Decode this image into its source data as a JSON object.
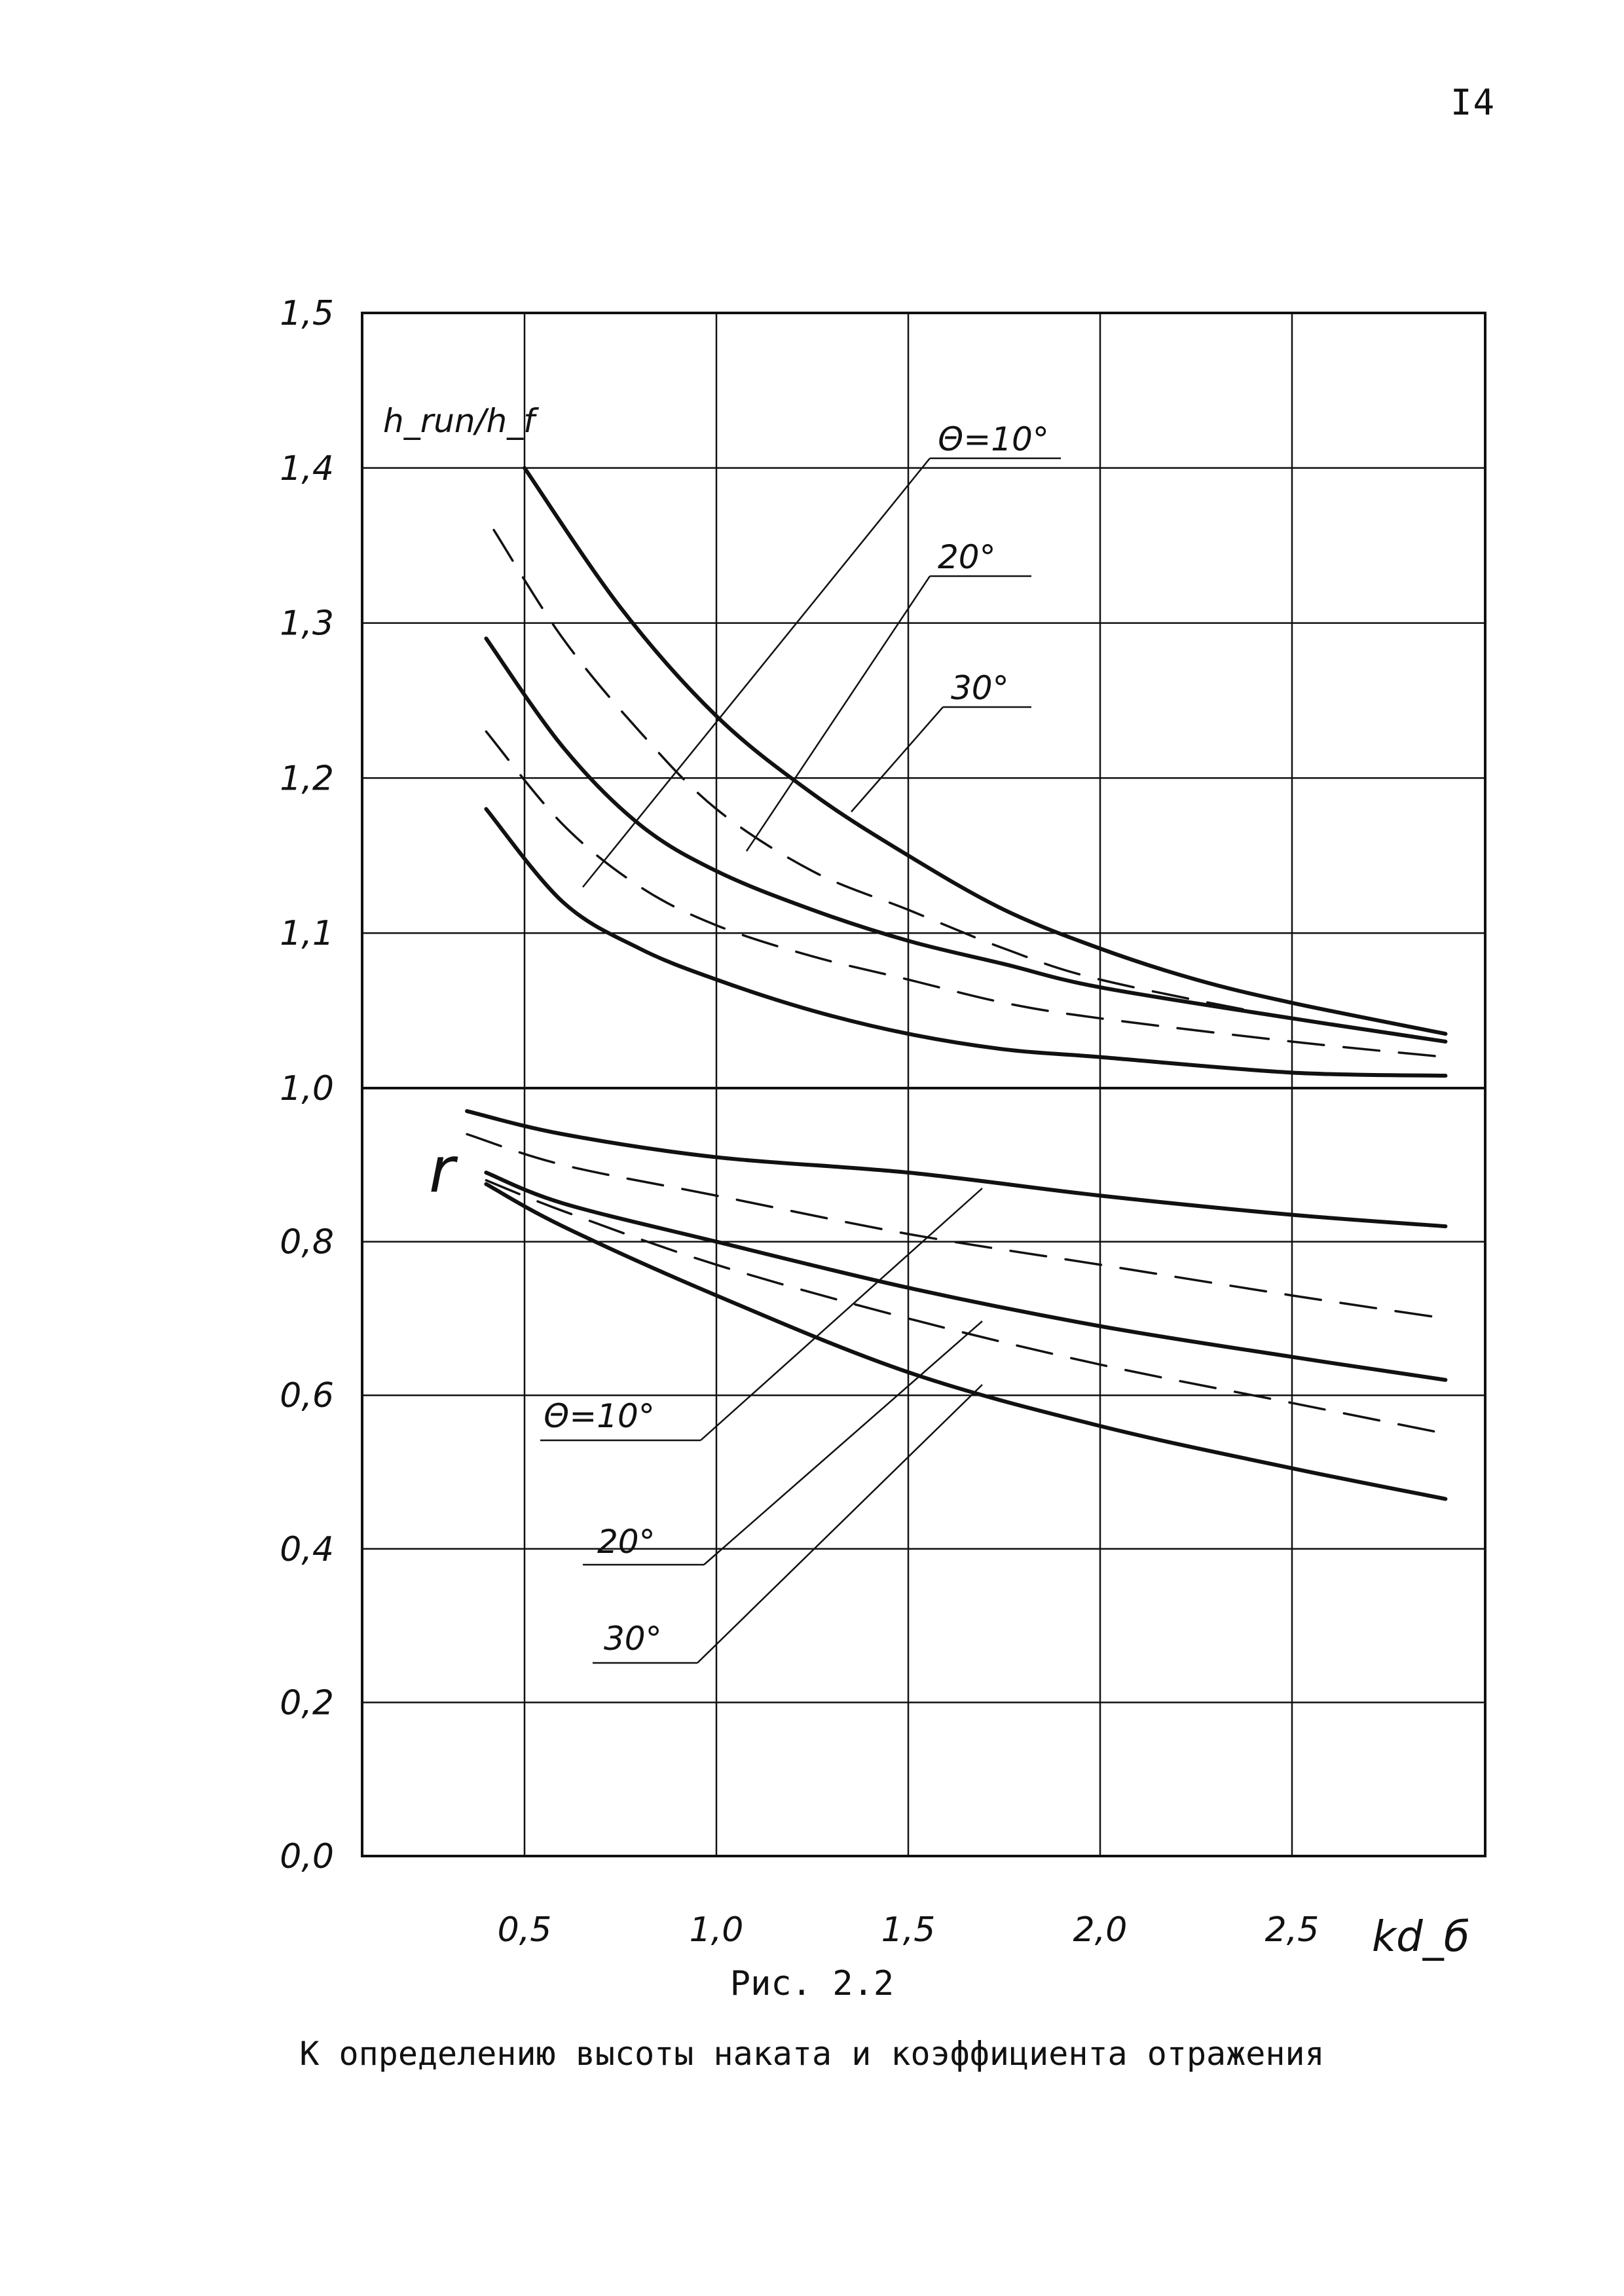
{
  "page_number": "I4",
  "figure_number": "Рис. 2.2",
  "caption": "К определению высоты наката и коэффициента отражения",
  "chart_data": {
    "type": "line",
    "xlabel": "kd_б",
    "ylabel_upper": "h_run/h_f",
    "ylabel_lower": "r",
    "x_ticks": [
      "0,5",
      "1,0",
      "1,5",
      "2,0",
      "2,5"
    ],
    "x_tick_values": [
      0.5,
      1.0,
      1.5,
      2.0,
      2.5
    ],
    "y_ticks": [
      "0,0",
      "0,2",
      "0,4",
      "0,6",
      "0,8",
      "1,0",
      "1,1",
      "1,2",
      "1,3",
      "1,4",
      "1,5"
    ],
    "y_tick_values": [
      0.0,
      0.2,
      0.4,
      0.6,
      0.8,
      1.0,
      1.1,
      1.2,
      1.3,
      1.4,
      1.5
    ],
    "xlim": [
      0.0,
      2.9
    ],
    "grid": true,
    "curve_labels_upper": [
      "Θ=10°",
      "20°",
      "30°"
    ],
    "curve_labels_lower": [
      "Θ=10°",
      "20°",
      "30°"
    ],
    "series": [
      {
        "group": "h_run/h_f",
        "label": "Θ=10°",
        "style": "solid",
        "x": [
          0.5,
          0.75,
          1.0,
          1.25,
          1.5,
          1.75,
          2.0,
          2.25,
          2.5,
          2.9
        ],
        "y": [
          1.4,
          1.31,
          1.24,
          1.19,
          1.15,
          1.115,
          1.09,
          1.07,
          1.055,
          1.035
        ]
      },
      {
        "group": "h_run/h_f",
        "label": "",
        "style": "dashed",
        "x": [
          0.42,
          0.6,
          0.8,
          1.0,
          1.25,
          1.5,
          1.75,
          2.0,
          2.5,
          2.9
        ],
        "y": [
          1.36,
          1.29,
          1.23,
          1.18,
          1.14,
          1.115,
          1.09,
          1.07,
          1.045,
          1.03
        ]
      },
      {
        "group": "h_run/h_f",
        "label": "20°",
        "style": "solid",
        "x": [
          0.4,
          0.6,
          0.8,
          1.0,
          1.25,
          1.5,
          1.75,
          2.0,
          2.5,
          2.9
        ],
        "y": [
          1.29,
          1.22,
          1.17,
          1.14,
          1.115,
          1.095,
          1.08,
          1.065,
          1.045,
          1.03
        ]
      },
      {
        "group": "h_run/h_f",
        "label": "",
        "style": "dashed",
        "x": [
          0.4,
          0.6,
          0.8,
          1.0,
          1.25,
          1.5,
          1.75,
          2.0,
          2.5,
          2.9
        ],
        "y": [
          1.23,
          1.17,
          1.13,
          1.105,
          1.085,
          1.07,
          1.055,
          1.045,
          1.03,
          1.02
        ]
      },
      {
        "group": "h_run/h_f",
        "label": "30°",
        "style": "solid",
        "x": [
          0.4,
          0.6,
          0.8,
          1.0,
          1.25,
          1.5,
          1.75,
          2.0,
          2.5,
          2.9
        ],
        "y": [
          1.18,
          1.12,
          1.09,
          1.07,
          1.05,
          1.035,
          1.025,
          1.02,
          1.01,
          1.008
        ]
      },
      {
        "group": "r",
        "label": "Θ=10°",
        "style": "solid",
        "x": [
          0.35,
          0.6,
          1.0,
          1.5,
          2.0,
          2.5,
          2.9
        ],
        "y": [
          0.97,
          0.94,
          0.91,
          0.89,
          0.86,
          0.835,
          0.82
        ]
      },
      {
        "group": "r",
        "label": "",
        "style": "dashed",
        "x": [
          0.35,
          0.6,
          1.0,
          1.5,
          2.0,
          2.5,
          2.9
        ],
        "y": [
          0.94,
          0.9,
          0.86,
          0.81,
          0.77,
          0.73,
          0.7
        ]
      },
      {
        "group": "r",
        "label": "20°",
        "style": "solid",
        "x": [
          0.4,
          0.6,
          1.0,
          1.5,
          2.0,
          2.5,
          2.9
        ],
        "y": [
          0.89,
          0.85,
          0.8,
          0.74,
          0.69,
          0.65,
          0.62
        ]
      },
      {
        "group": "r",
        "label": "",
        "style": "dashed",
        "x": [
          0.4,
          0.6,
          1.0,
          1.5,
          2.0,
          2.5,
          2.9
        ],
        "y": [
          0.88,
          0.84,
          0.77,
          0.7,
          0.64,
          0.59,
          0.55
        ]
      },
      {
        "group": "r",
        "label": "30°",
        "style": "solid",
        "x": [
          0.4,
          0.6,
          1.0,
          1.5,
          2.0,
          2.5,
          2.9
        ],
        "y": [
          0.875,
          0.82,
          0.73,
          0.63,
          0.56,
          0.505,
          0.465
        ]
      }
    ]
  }
}
